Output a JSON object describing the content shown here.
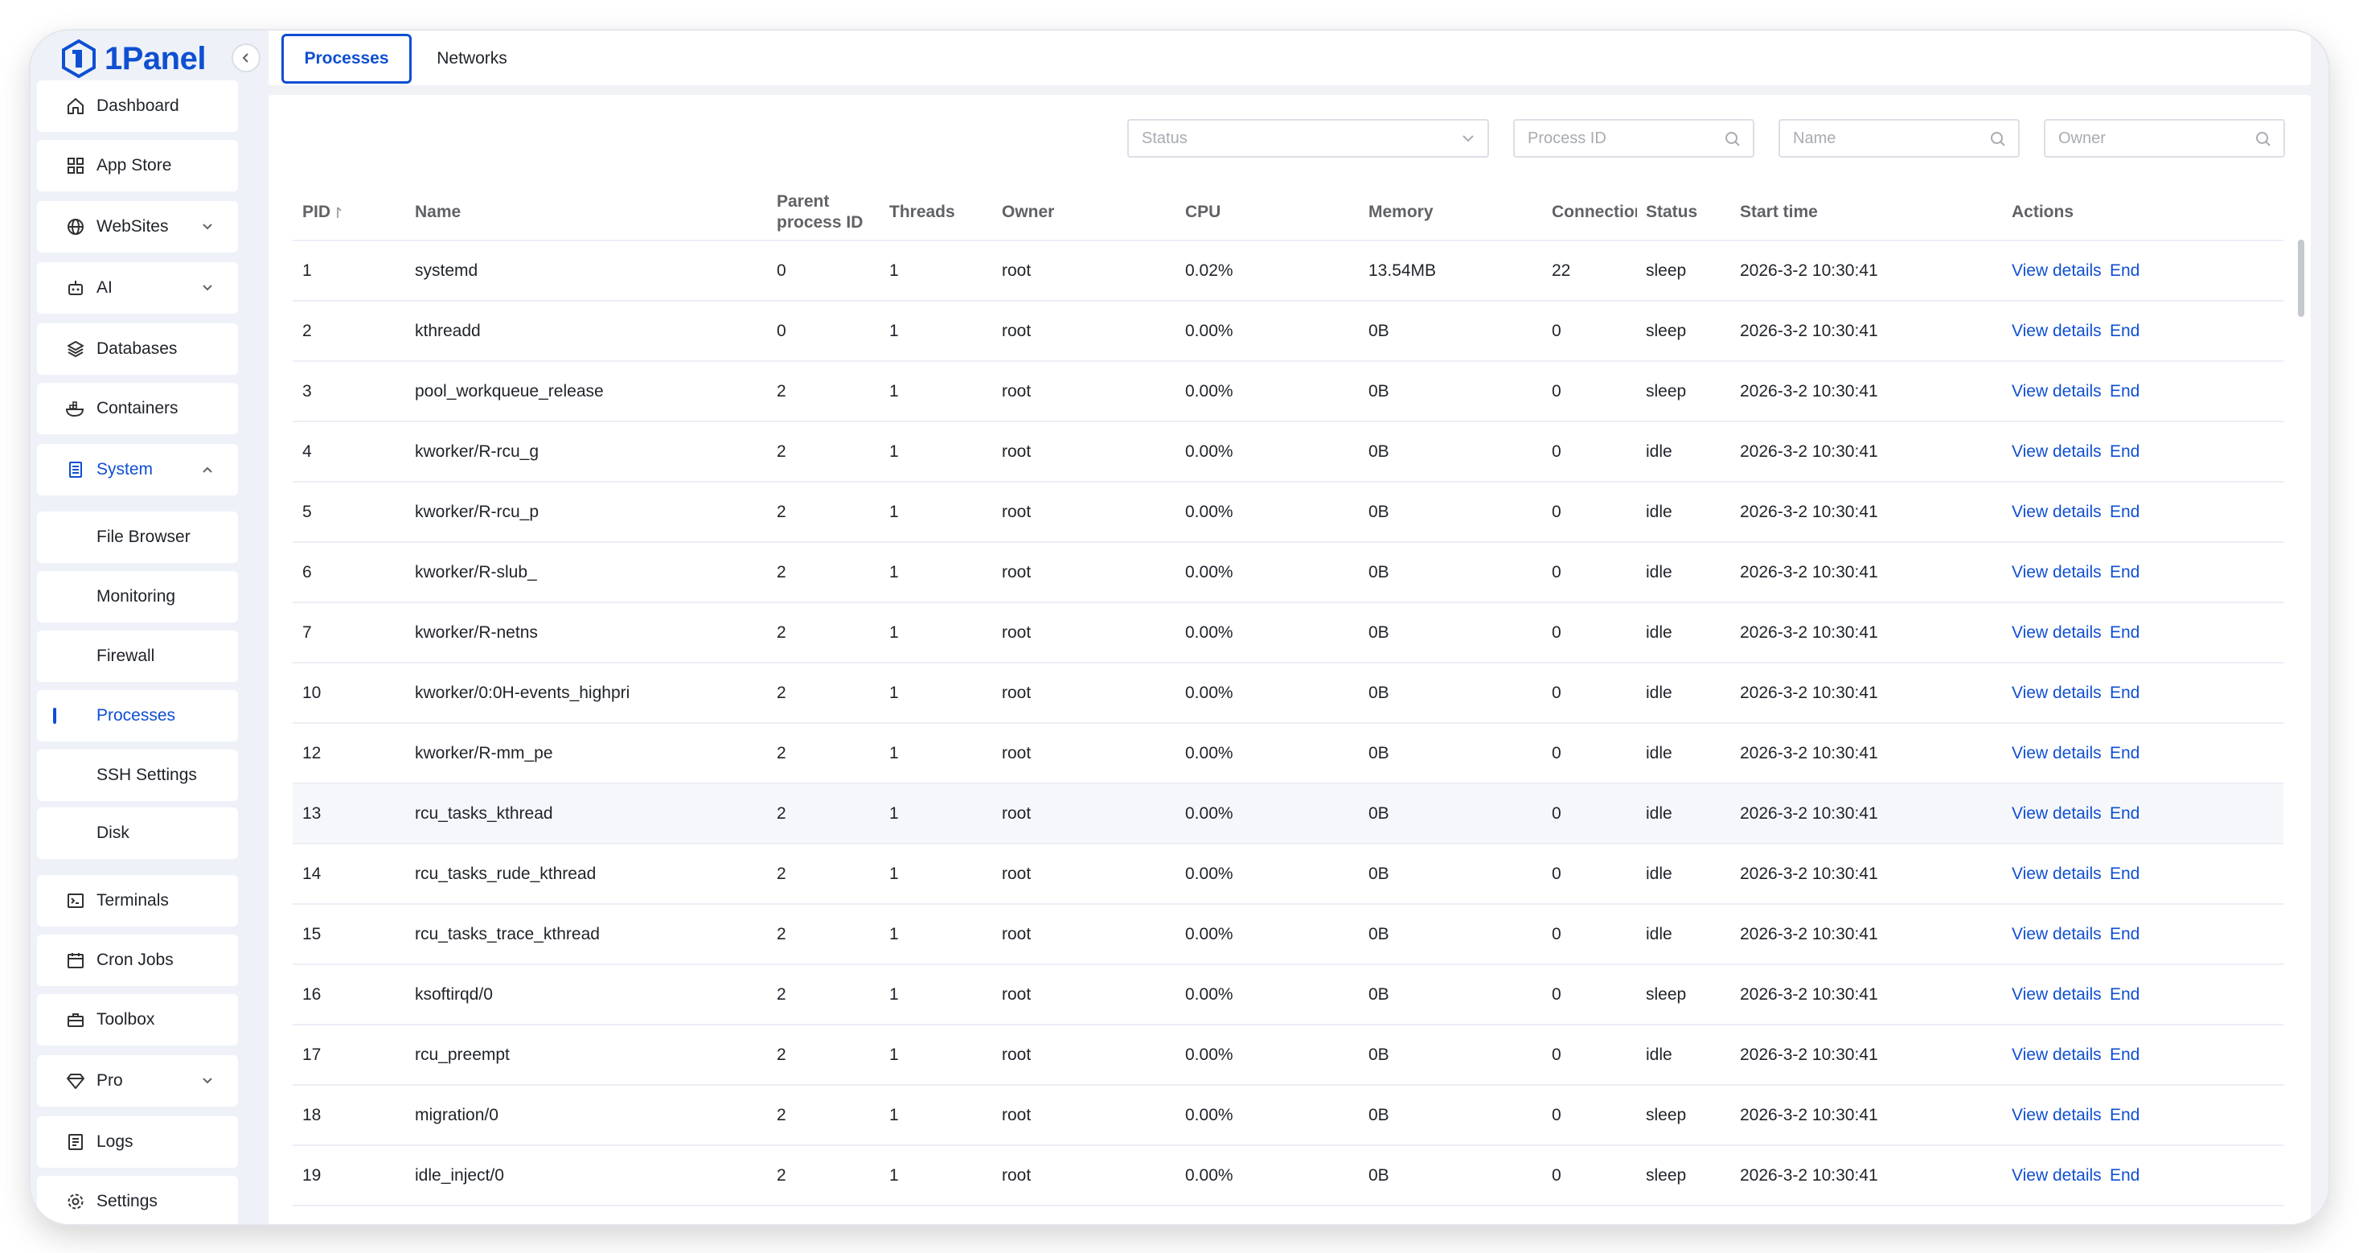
{
  "brand": {
    "name": "1Panel",
    "accent": "#0f4fd1"
  },
  "sidebar": {
    "items": [
      {
        "label": "Dashboard",
        "icon": "home-icon"
      },
      {
        "label": "App Store",
        "icon": "grid-icon"
      },
      {
        "label": "WebSites",
        "icon": "globe-icon"
      },
      {
        "label": "AI",
        "icon": "robot-icon"
      },
      {
        "label": "Databases",
        "icon": "layers-icon"
      },
      {
        "label": "Containers",
        "icon": "whale-icon"
      },
      {
        "label": "System",
        "icon": "server-icon"
      },
      {
        "label": "Terminals",
        "icon": "terminal-icon"
      },
      {
        "label": "Cron Jobs",
        "icon": "calendar-icon"
      },
      {
        "label": "Toolbox",
        "icon": "toolbox-icon"
      },
      {
        "label": "Pro",
        "icon": "diamond-icon"
      },
      {
        "label": "Logs",
        "icon": "log-icon"
      },
      {
        "label": "Settings",
        "icon": "gear-icon"
      }
    ],
    "system_children": [
      "File Browser",
      "Monitoring",
      "Firewall",
      "Processes",
      "SSH Settings",
      "Disk"
    ],
    "active": "Processes"
  },
  "tabs": [
    "Processes",
    "Networks"
  ],
  "filters": {
    "status_placeholder": "Status",
    "pid_placeholder": "Process ID",
    "name_placeholder": "Name",
    "owner_placeholder": "Owner"
  },
  "table": {
    "columns": {
      "pid": "PID",
      "name": "Name",
      "parent": "Parent process ID",
      "threads": "Threads",
      "owner": "Owner",
      "cpu": "CPU",
      "memory": "Memory",
      "connections": "Connections",
      "status": "Status",
      "start_time": "Start time",
      "actions": "Actions"
    },
    "action_labels": {
      "details": "View details",
      "end": "End"
    },
    "rows": [
      {
        "pid": "1",
        "name": "systemd",
        "ppid": "0",
        "threads": "1",
        "owner": "root",
        "cpu": "0.02%",
        "memory": "13.54MB",
        "connections": "22",
        "status": "sleep",
        "start": "2026-3-2 10:30:41"
      },
      {
        "pid": "2",
        "name": "kthreadd",
        "ppid": "0",
        "threads": "1",
        "owner": "root",
        "cpu": "0.00%",
        "memory": "0B",
        "connections": "0",
        "status": "sleep",
        "start": "2026-3-2 10:30:41"
      },
      {
        "pid": "3",
        "name": "pool_workqueue_release",
        "ppid": "2",
        "threads": "1",
        "owner": "root",
        "cpu": "0.00%",
        "memory": "0B",
        "connections": "0",
        "status": "sleep",
        "start": "2026-3-2 10:30:41"
      },
      {
        "pid": "4",
        "name": "kworker/R-rcu_g",
        "ppid": "2",
        "threads": "1",
        "owner": "root",
        "cpu": "0.00%",
        "memory": "0B",
        "connections": "0",
        "status": "idle",
        "start": "2026-3-2 10:30:41"
      },
      {
        "pid": "5",
        "name": "kworker/R-rcu_p",
        "ppid": "2",
        "threads": "1",
        "owner": "root",
        "cpu": "0.00%",
        "memory": "0B",
        "connections": "0",
        "status": "idle",
        "start": "2026-3-2 10:30:41"
      },
      {
        "pid": "6",
        "name": "kworker/R-slub_",
        "ppid": "2",
        "threads": "1",
        "owner": "root",
        "cpu": "0.00%",
        "memory": "0B",
        "connections": "0",
        "status": "idle",
        "start": "2026-3-2 10:30:41"
      },
      {
        "pid": "7",
        "name": "kworker/R-netns",
        "ppid": "2",
        "threads": "1",
        "owner": "root",
        "cpu": "0.00%",
        "memory": "0B",
        "connections": "0",
        "status": "idle",
        "start": "2026-3-2 10:30:41"
      },
      {
        "pid": "10",
        "name": "kworker/0:0H-events_highpri",
        "ppid": "2",
        "threads": "1",
        "owner": "root",
        "cpu": "0.00%",
        "memory": "0B",
        "connections": "0",
        "status": "idle",
        "start": "2026-3-2 10:30:41"
      },
      {
        "pid": "12",
        "name": "kworker/R-mm_pe",
        "ppid": "2",
        "threads": "1",
        "owner": "root",
        "cpu": "0.00%",
        "memory": "0B",
        "connections": "0",
        "status": "idle",
        "start": "2026-3-2 10:30:41"
      },
      {
        "pid": "13",
        "name": "rcu_tasks_kthread",
        "ppid": "2",
        "threads": "1",
        "owner": "root",
        "cpu": "0.00%",
        "memory": "0B",
        "connections": "0",
        "status": "idle",
        "start": "2026-3-2 10:30:41"
      },
      {
        "pid": "14",
        "name": "rcu_tasks_rude_kthread",
        "ppid": "2",
        "threads": "1",
        "owner": "root",
        "cpu": "0.00%",
        "memory": "0B",
        "connections": "0",
        "status": "idle",
        "start": "2026-3-2 10:30:41"
      },
      {
        "pid": "15",
        "name": "rcu_tasks_trace_kthread",
        "ppid": "2",
        "threads": "1",
        "owner": "root",
        "cpu": "0.00%",
        "memory": "0B",
        "connections": "0",
        "status": "idle",
        "start": "2026-3-2 10:30:41"
      },
      {
        "pid": "16",
        "name": "ksoftirqd/0",
        "ppid": "2",
        "threads": "1",
        "owner": "root",
        "cpu": "0.00%",
        "memory": "0B",
        "connections": "0",
        "status": "sleep",
        "start": "2026-3-2 10:30:41"
      },
      {
        "pid": "17",
        "name": "rcu_preempt",
        "ppid": "2",
        "threads": "1",
        "owner": "root",
        "cpu": "0.00%",
        "memory": "0B",
        "connections": "0",
        "status": "idle",
        "start": "2026-3-2 10:30:41"
      },
      {
        "pid": "18",
        "name": "migration/0",
        "ppid": "2",
        "threads": "1",
        "owner": "root",
        "cpu": "0.00%",
        "memory": "0B",
        "connections": "0",
        "status": "sleep",
        "start": "2026-3-2 10:30:41"
      },
      {
        "pid": "19",
        "name": "idle_inject/0",
        "ppid": "2",
        "threads": "1",
        "owner": "root",
        "cpu": "0.00%",
        "memory": "0B",
        "connections": "0",
        "status": "sleep",
        "start": "2026-3-2 10:30:41"
      }
    ]
  }
}
